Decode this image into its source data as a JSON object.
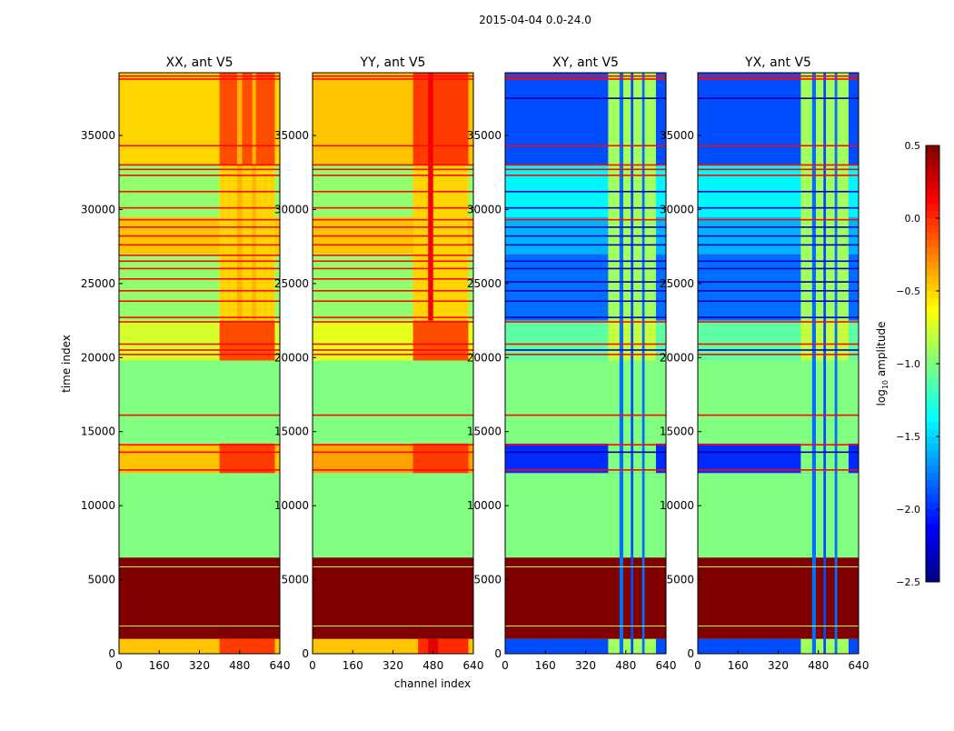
{
  "chart_data": {
    "type": "heatmap",
    "suptitle": "2015-04-04 0.0-24.0",
    "xlabel": "channel index",
    "ylabel": "time index",
    "xlim": [
      0,
      640
    ],
    "ylim": [
      0,
      39240
    ],
    "xticks": [
      "0",
      "160",
      "320",
      "480",
      "640"
    ],
    "yticks": [
      "0",
      "5000",
      "10000",
      "15000",
      "20000",
      "25000",
      "30000",
      "35000"
    ],
    "colorbar": {
      "label_prefix": "log",
      "label_sub": "10",
      "label_suffix": " amplitude",
      "range": [
        -2.5,
        0.5
      ],
      "ticks": [
        "0.5",
        "0.0",
        "−0.5",
        "−1.0",
        "−1.5",
        "−2.0",
        "−2.5"
      ],
      "colormap": "jet"
    },
    "panels": [
      {
        "title": "XX, ant V5",
        "bands": [
          [
            0,
            1000,
            -0.45
          ],
          [
            1000,
            6500,
            0.5
          ],
          [
            6500,
            12200,
            -1.0
          ],
          [
            12200,
            14200,
            -0.45
          ],
          [
            14200,
            19800,
            -1.0
          ],
          [
            19800,
            22500,
            -0.75
          ],
          [
            22500,
            27000,
            -0.95
          ],
          [
            27000,
            29500,
            -0.45
          ],
          [
            29500,
            33000,
            -0.95
          ],
          [
            33000,
            39240,
            -0.5
          ]
        ],
        "features": [
          [
            400,
            620,
            0,
            1000,
            -0.05
          ],
          [
            400,
            620,
            12200,
            14200,
            -0.05
          ],
          [
            400,
            620,
            19800,
            22500,
            -0.1
          ],
          [
            400,
            620,
            22500,
            33000,
            -0.5
          ],
          [
            400,
            620,
            33000,
            39240,
            -0.1
          ],
          [
            470,
            490,
            22500,
            39240,
            -0.4
          ],
          [
            530,
            545,
            22500,
            39240,
            -0.4
          ]
        ],
        "stripes": [
          [
            16100,
            0.1
          ],
          [
            20200,
            0.1
          ],
          [
            20500,
            0.1
          ],
          [
            20900,
            0.1
          ],
          [
            22400,
            0.1
          ],
          [
            22700,
            0.1
          ],
          [
            23800,
            0.1
          ],
          [
            24500,
            0.1
          ],
          [
            25300,
            0.1
          ],
          [
            26000,
            0.1
          ],
          [
            26500,
            0.1
          ],
          [
            26900,
            0.1
          ],
          [
            27600,
            0.1
          ],
          [
            28200,
            0.1
          ],
          [
            28800,
            0.1
          ],
          [
            29300,
            0.1
          ],
          [
            30100,
            0.1
          ],
          [
            31200,
            0.1
          ],
          [
            32300,
            0.1
          ],
          [
            32700,
            0.1
          ],
          [
            33000,
            0.1
          ],
          [
            34300,
            0.1
          ],
          [
            38800,
            0.1
          ],
          [
            39000,
            0.1
          ],
          [
            12400,
            0.1
          ],
          [
            13600,
            0.1
          ],
          [
            14100,
            0.1
          ]
        ]
      },
      {
        "title": "YY, ant V5",
        "bands": [
          [
            0,
            1000,
            -0.45
          ],
          [
            1000,
            6500,
            0.5
          ],
          [
            6500,
            12200,
            -1.0
          ],
          [
            12200,
            14200,
            -0.35
          ],
          [
            14200,
            19800,
            -1.0
          ],
          [
            19800,
            22500,
            -0.7
          ],
          [
            22500,
            27000,
            -0.95
          ],
          [
            27000,
            29500,
            -0.45
          ],
          [
            29500,
            33000,
            -0.95
          ],
          [
            33000,
            39240,
            -0.45
          ]
        ],
        "features": [
          [
            420,
            620,
            0,
            1000,
            0.0
          ],
          [
            460,
            500,
            0,
            1000,
            0.2
          ],
          [
            400,
            620,
            12200,
            14200,
            -0.05
          ],
          [
            400,
            620,
            19800,
            22500,
            -0.1
          ],
          [
            400,
            620,
            22500,
            33000,
            -0.5
          ],
          [
            400,
            620,
            33000,
            39240,
            -0.05
          ],
          [
            460,
            480,
            22500,
            39240,
            0.15
          ]
        ],
        "stripes": [
          [
            16100,
            0.1
          ],
          [
            20200,
            0.1
          ],
          [
            20500,
            0.1
          ],
          [
            20900,
            0.1
          ],
          [
            22400,
            0.1
          ],
          [
            22700,
            0.1
          ],
          [
            23800,
            0.1
          ],
          [
            24500,
            0.1
          ],
          [
            25300,
            0.1
          ],
          [
            26000,
            0.1
          ],
          [
            26500,
            0.1
          ],
          [
            26900,
            0.1
          ],
          [
            27600,
            0.1
          ],
          [
            28200,
            0.1
          ],
          [
            28800,
            0.1
          ],
          [
            29300,
            0.1
          ],
          [
            30100,
            0.1
          ],
          [
            31200,
            0.1
          ],
          [
            32300,
            0.1
          ],
          [
            32700,
            0.1
          ],
          [
            33000,
            0.1
          ],
          [
            34300,
            0.1
          ],
          [
            38800,
            0.1
          ],
          [
            39000,
            0.1
          ],
          [
            12400,
            0.1
          ],
          [
            13600,
            0.1
          ],
          [
            14100,
            0.1
          ]
        ]
      },
      {
        "title": "XY, ant V5",
        "bands": [
          [
            0,
            1000,
            -1.9
          ],
          [
            1000,
            6500,
            0.5
          ],
          [
            6500,
            12200,
            -1.0
          ],
          [
            12200,
            14200,
            -2.0
          ],
          [
            14200,
            19800,
            -1.0
          ],
          [
            19800,
            22500,
            -1.1
          ],
          [
            22500,
            27000,
            -1.8
          ],
          [
            27000,
            29500,
            -1.6
          ],
          [
            29500,
            33000,
            -1.4
          ],
          [
            33000,
            39240,
            -1.9
          ]
        ],
        "features": [
          [
            410,
            600,
            0,
            1000,
            -0.9
          ],
          [
            410,
            600,
            12200,
            14200,
            -1.0
          ],
          [
            410,
            600,
            19800,
            22500,
            -0.8
          ],
          [
            410,
            600,
            22500,
            39240,
            -0.9
          ],
          [
            455,
            470,
            0,
            39240,
            -1.8
          ],
          [
            500,
            510,
            0,
            39240,
            -1.9
          ],
          [
            545,
            555,
            0,
            39240,
            -1.8
          ]
        ],
        "stripes": [
          [
            16100,
            0.1
          ],
          [
            20200,
            0.1
          ],
          [
            20500,
            -2.3
          ],
          [
            20900,
            0.1
          ],
          [
            22400,
            0.1
          ],
          [
            22700,
            -2.3
          ],
          [
            23800,
            -2.3
          ],
          [
            24500,
            -2.3
          ],
          [
            25100,
            -2.4
          ],
          [
            26000,
            -2.3
          ],
          [
            26500,
            -2.2
          ],
          [
            27600,
            -2.3
          ],
          [
            28200,
            -2.3
          ],
          [
            28800,
            -2.3
          ],
          [
            29300,
            0.1
          ],
          [
            30100,
            -2.3
          ],
          [
            31200,
            -2.3
          ],
          [
            32300,
            0.1
          ],
          [
            32700,
            0.1
          ],
          [
            33000,
            0.1
          ],
          [
            34300,
            0.1
          ],
          [
            37500,
            -2.4
          ],
          [
            38800,
            0.1
          ],
          [
            39000,
            0.1
          ],
          [
            12400,
            0.1
          ],
          [
            13600,
            -2.4
          ],
          [
            14100,
            0.1
          ]
        ]
      },
      {
        "title": "YX, ant V5",
        "bands": [
          [
            0,
            1000,
            -1.9
          ],
          [
            1000,
            6500,
            0.5
          ],
          [
            6500,
            12200,
            -1.0
          ],
          [
            12200,
            14200,
            -2.0
          ],
          [
            14200,
            19800,
            -1.0
          ],
          [
            19800,
            22500,
            -1.1
          ],
          [
            22500,
            27000,
            -1.8
          ],
          [
            27000,
            29500,
            -1.6
          ],
          [
            29500,
            33000,
            -1.4
          ],
          [
            33000,
            39240,
            -1.9
          ]
        ],
        "features": [
          [
            410,
            600,
            0,
            1000,
            -0.9
          ],
          [
            410,
            600,
            12200,
            14200,
            -1.0
          ],
          [
            410,
            600,
            19800,
            22500,
            -0.8
          ],
          [
            410,
            600,
            22500,
            39240,
            -0.9
          ],
          [
            455,
            470,
            0,
            39240,
            -1.8
          ],
          [
            500,
            510,
            0,
            39240,
            -1.9
          ],
          [
            545,
            555,
            0,
            39240,
            -1.8
          ]
        ],
        "stripes": [
          [
            16100,
            0.1
          ],
          [
            20200,
            0.1
          ],
          [
            20500,
            -2.3
          ],
          [
            20900,
            0.1
          ],
          [
            22400,
            0.1
          ],
          [
            22700,
            -2.3
          ],
          [
            23800,
            -2.3
          ],
          [
            24500,
            -2.3
          ],
          [
            25100,
            -2.4
          ],
          [
            26000,
            -2.3
          ],
          [
            26500,
            -2.2
          ],
          [
            27600,
            -2.3
          ],
          [
            28200,
            -2.3
          ],
          [
            28800,
            -2.3
          ],
          [
            29300,
            0.1
          ],
          [
            30100,
            -2.3
          ],
          [
            31200,
            -2.3
          ],
          [
            32300,
            0.1
          ],
          [
            32700,
            0.1
          ],
          [
            33000,
            0.1
          ],
          [
            34300,
            0.1
          ],
          [
            37500,
            -2.4
          ],
          [
            38800,
            0.1
          ],
          [
            39000,
            0.1
          ],
          [
            12400,
            0.1
          ],
          [
            13600,
            -2.4
          ],
          [
            14100,
            0.1
          ]
        ]
      }
    ]
  }
}
